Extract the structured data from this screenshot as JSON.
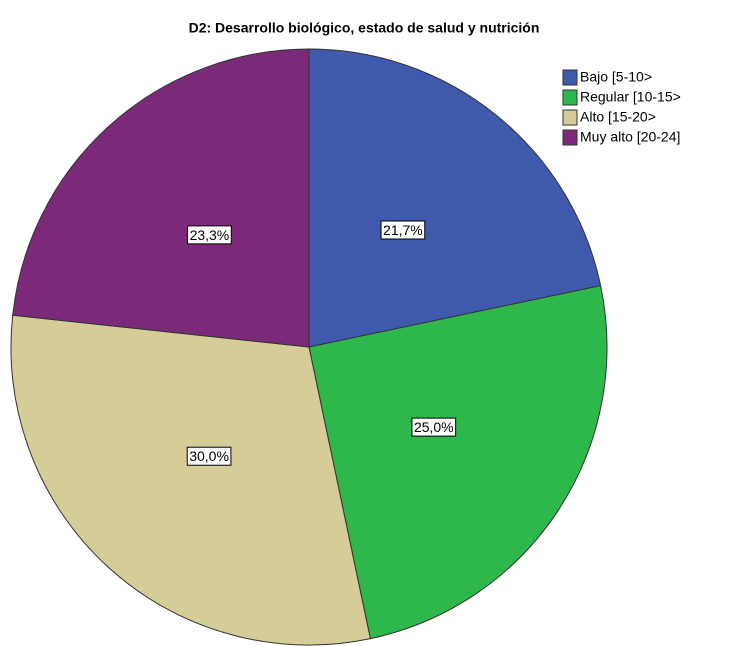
{
  "chart_data": {
    "type": "pie",
    "title": "D2: Desarrollo biológico, estado de salud y nutrición",
    "categories": [
      "Bajo [5-10>",
      "Regular [10-15>",
      "Alto [15-20>",
      "Muy alto [20-24]"
    ],
    "values": [
      21.7,
      25.0,
      30.0,
      23.3
    ],
    "value_labels": [
      "21,7%",
      "25,0%",
      "30,0%",
      "23,3%"
    ],
    "colors": [
      "#3f59ad",
      "#2eb84b",
      "#d5cd98",
      "#7b2a7a"
    ],
    "legend": "upper right"
  }
}
